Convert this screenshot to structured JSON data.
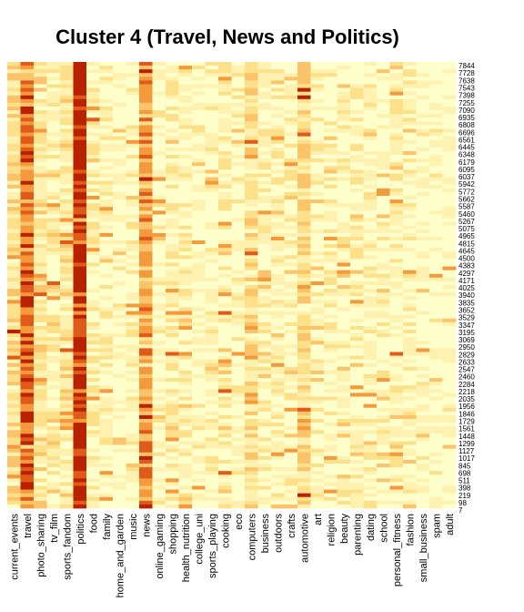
{
  "chart_data": {
    "type": "heatmap",
    "title": "Cluster 4 (Travel, News and Politics)",
    "xlabel": "",
    "ylabel": "",
    "color_scale": [
      "#ffffcc",
      "#fff2b0",
      "#fde08a",
      "#fcc46a",
      "#f59a3c",
      "#e05a1a",
      "#b82200"
    ],
    "columns": [
      "current_events",
      "travel",
      "photo_sharing",
      "tv_film",
      "sports_fandom",
      "politics",
      "food",
      "family",
      "home_and_garden",
      "music",
      "news",
      "online_gaming",
      "shopping",
      "health_nutrition",
      "college_uni",
      "sports_playing",
      "cooking",
      "eco",
      "computers",
      "business",
      "outdoors",
      "crafts",
      "automotive",
      "art",
      "religion",
      "beauty",
      "parenting",
      "dating",
      "school",
      "personal_fitness",
      "fashion",
      "small_business",
      "spam",
      "adult"
    ],
    "column_intensity": [
      0.35,
      0.75,
      0.32,
      0.22,
      0.28,
      0.92,
      0.22,
      0.18,
      0.12,
      0.15,
      0.62,
      0.14,
      0.22,
      0.22,
      0.12,
      0.18,
      0.22,
      0.15,
      0.38,
      0.2,
      0.2,
      0.16,
      0.4,
      0.16,
      0.18,
      0.16,
      0.18,
      0.2,
      0.16,
      0.22,
      0.16,
      0.12,
      0.08,
      0.1
    ],
    "row_labels": [
      "7844",
      "7728",
      "7638",
      "7543",
      "7398",
      "7255",
      "7090",
      "6935",
      "6808",
      "6696",
      "6561",
      "6445",
      "6348",
      "6179",
      "6095",
      "6037",
      "5942",
      "5772",
      "5662",
      "5587",
      "5460",
      "5267",
      "5075",
      "4965",
      "4815",
      "4645",
      "4500",
      "4383",
      "4297",
      "4171",
      "4025",
      "3940",
      "3835",
      "3652",
      "3529",
      "3347",
      "3195",
      "3069",
      "2950",
      "2829",
      "2633",
      "2547",
      "2460",
      "2284",
      "2218",
      "2035",
      "1956",
      "1846",
      "1729",
      "1561",
      "1448",
      "1299",
      "1127",
      "1017",
      "845",
      "698",
      "511",
      "398",
      "219",
      "98",
      "7"
    ],
    "row_count": 120
  }
}
